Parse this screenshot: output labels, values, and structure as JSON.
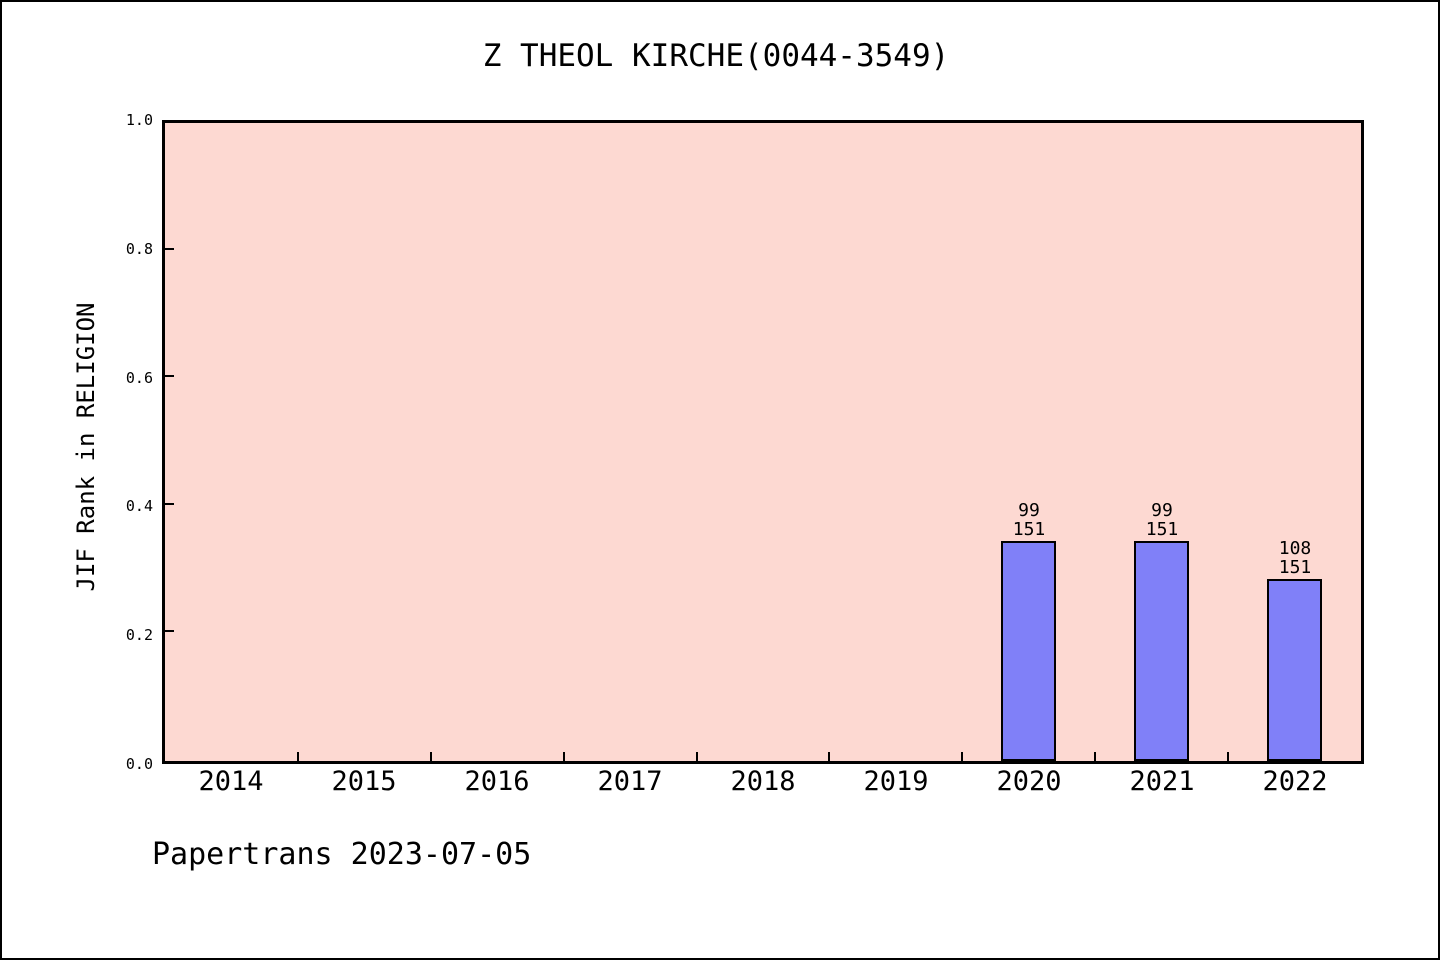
{
  "page": {
    "background": "#ffffff",
    "border_color": "#000000"
  },
  "footer": {
    "text": "Papertrans 2023-07-05"
  },
  "chart_data": {
    "type": "bar",
    "title": "Z THEOL KIRCHE(0044-3549)",
    "ylabel": "JIF Rank in RELIGION",
    "xlabel": "",
    "categories": [
      "2014",
      "2015",
      "2016",
      "2017",
      "2018",
      "2019",
      "2020",
      "2021",
      "2022"
    ],
    "bars": [
      {
        "category": "2020",
        "rank": 99,
        "total": 151,
        "value": 0.3444
      },
      {
        "category": "2021",
        "rank": 99,
        "total": 151,
        "value": 0.3444
      },
      {
        "category": "2022",
        "rank": 108,
        "total": 151,
        "value": 0.2848
      }
    ],
    "ylim": [
      0.0,
      1.0
    ],
    "yticks": [
      0.0,
      0.2,
      0.4,
      0.6,
      0.8,
      1.0
    ],
    "ytick_labels": [
      "0.0",
      "0.2",
      "0.4",
      "0.6",
      "0.8",
      "1.0"
    ],
    "grid": false,
    "legend": "none",
    "colors": {
      "plot_background": "#fdd9d2",
      "bar_fill": "#8080f8",
      "bar_edge": "#000000",
      "axis": "#000000",
      "text": "#000000"
    }
  }
}
